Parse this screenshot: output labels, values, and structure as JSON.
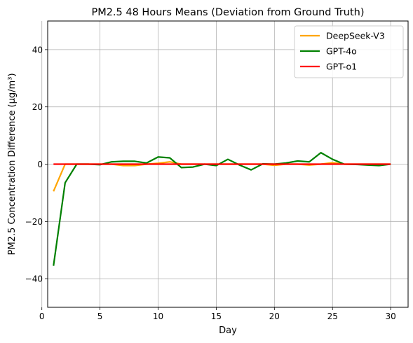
{
  "chart_data": {
    "type": "line",
    "title": "PM2.5 48 Hours Means (Deviation from Ground Truth)",
    "xlabel": "Day",
    "ylabel": "PM2.5 Concentration Difference (µg/m³)",
    "xlim": [
      0.5,
      31.5
    ],
    "ylim": [
      -50,
      50
    ],
    "xticks": [
      0,
      5,
      10,
      15,
      20,
      25,
      30
    ],
    "xtick_labels": [
      "0",
      "5",
      "10",
      "15",
      "20",
      "25",
      "30"
    ],
    "yticks": [
      -40,
      -20,
      0,
      20,
      40
    ],
    "ytick_labels": [
      "−40",
      "−20",
      "0",
      "20",
      "40"
    ],
    "grid": true,
    "legend_position": "top-right",
    "x": [
      1,
      2,
      3,
      4,
      5,
      6,
      7,
      8,
      9,
      10,
      11,
      12,
      13,
      14,
      15,
      16,
      17,
      18,
      19,
      20,
      21,
      22,
      23,
      24,
      25,
      26,
      27,
      28,
      29,
      30
    ],
    "series": [
      {
        "name": "DeepSeek-V3",
        "color": "#ffa500",
        "values": [
          -9.5,
          0,
          0,
          0,
          0,
          0,
          -0.5,
          -0.5,
          0,
          0.3,
          0.8,
          0,
          0,
          0,
          0,
          0,
          0,
          0,
          0,
          -0.4,
          0,
          0,
          -0.3,
          0,
          0.5,
          0,
          0,
          0,
          0,
          0
        ]
      },
      {
        "name": "GPT-4o",
        "color": "#008000",
        "values": [
          -35.5,
          -6.5,
          0,
          0,
          -0.2,
          0.8,
          1.0,
          1.0,
          0.4,
          2.5,
          2.2,
          -1.2,
          -1.0,
          0,
          -0.5,
          1.7,
          -0.3,
          -2.0,
          0.1,
          0,
          0.4,
          1.1,
          0.8,
          4.0,
          1.7,
          0,
          -0.1,
          -0.3,
          -0.5,
          0
        ]
      },
      {
        "name": "GPT-o1",
        "color": "#ff0000",
        "values": [
          0,
          0,
          0,
          0,
          0,
          0,
          0,
          0,
          0,
          0,
          0,
          0,
          0,
          0,
          0,
          0,
          0,
          0,
          0,
          0,
          0,
          0,
          0,
          0,
          0,
          0,
          0,
          0,
          0,
          0
        ]
      }
    ]
  }
}
